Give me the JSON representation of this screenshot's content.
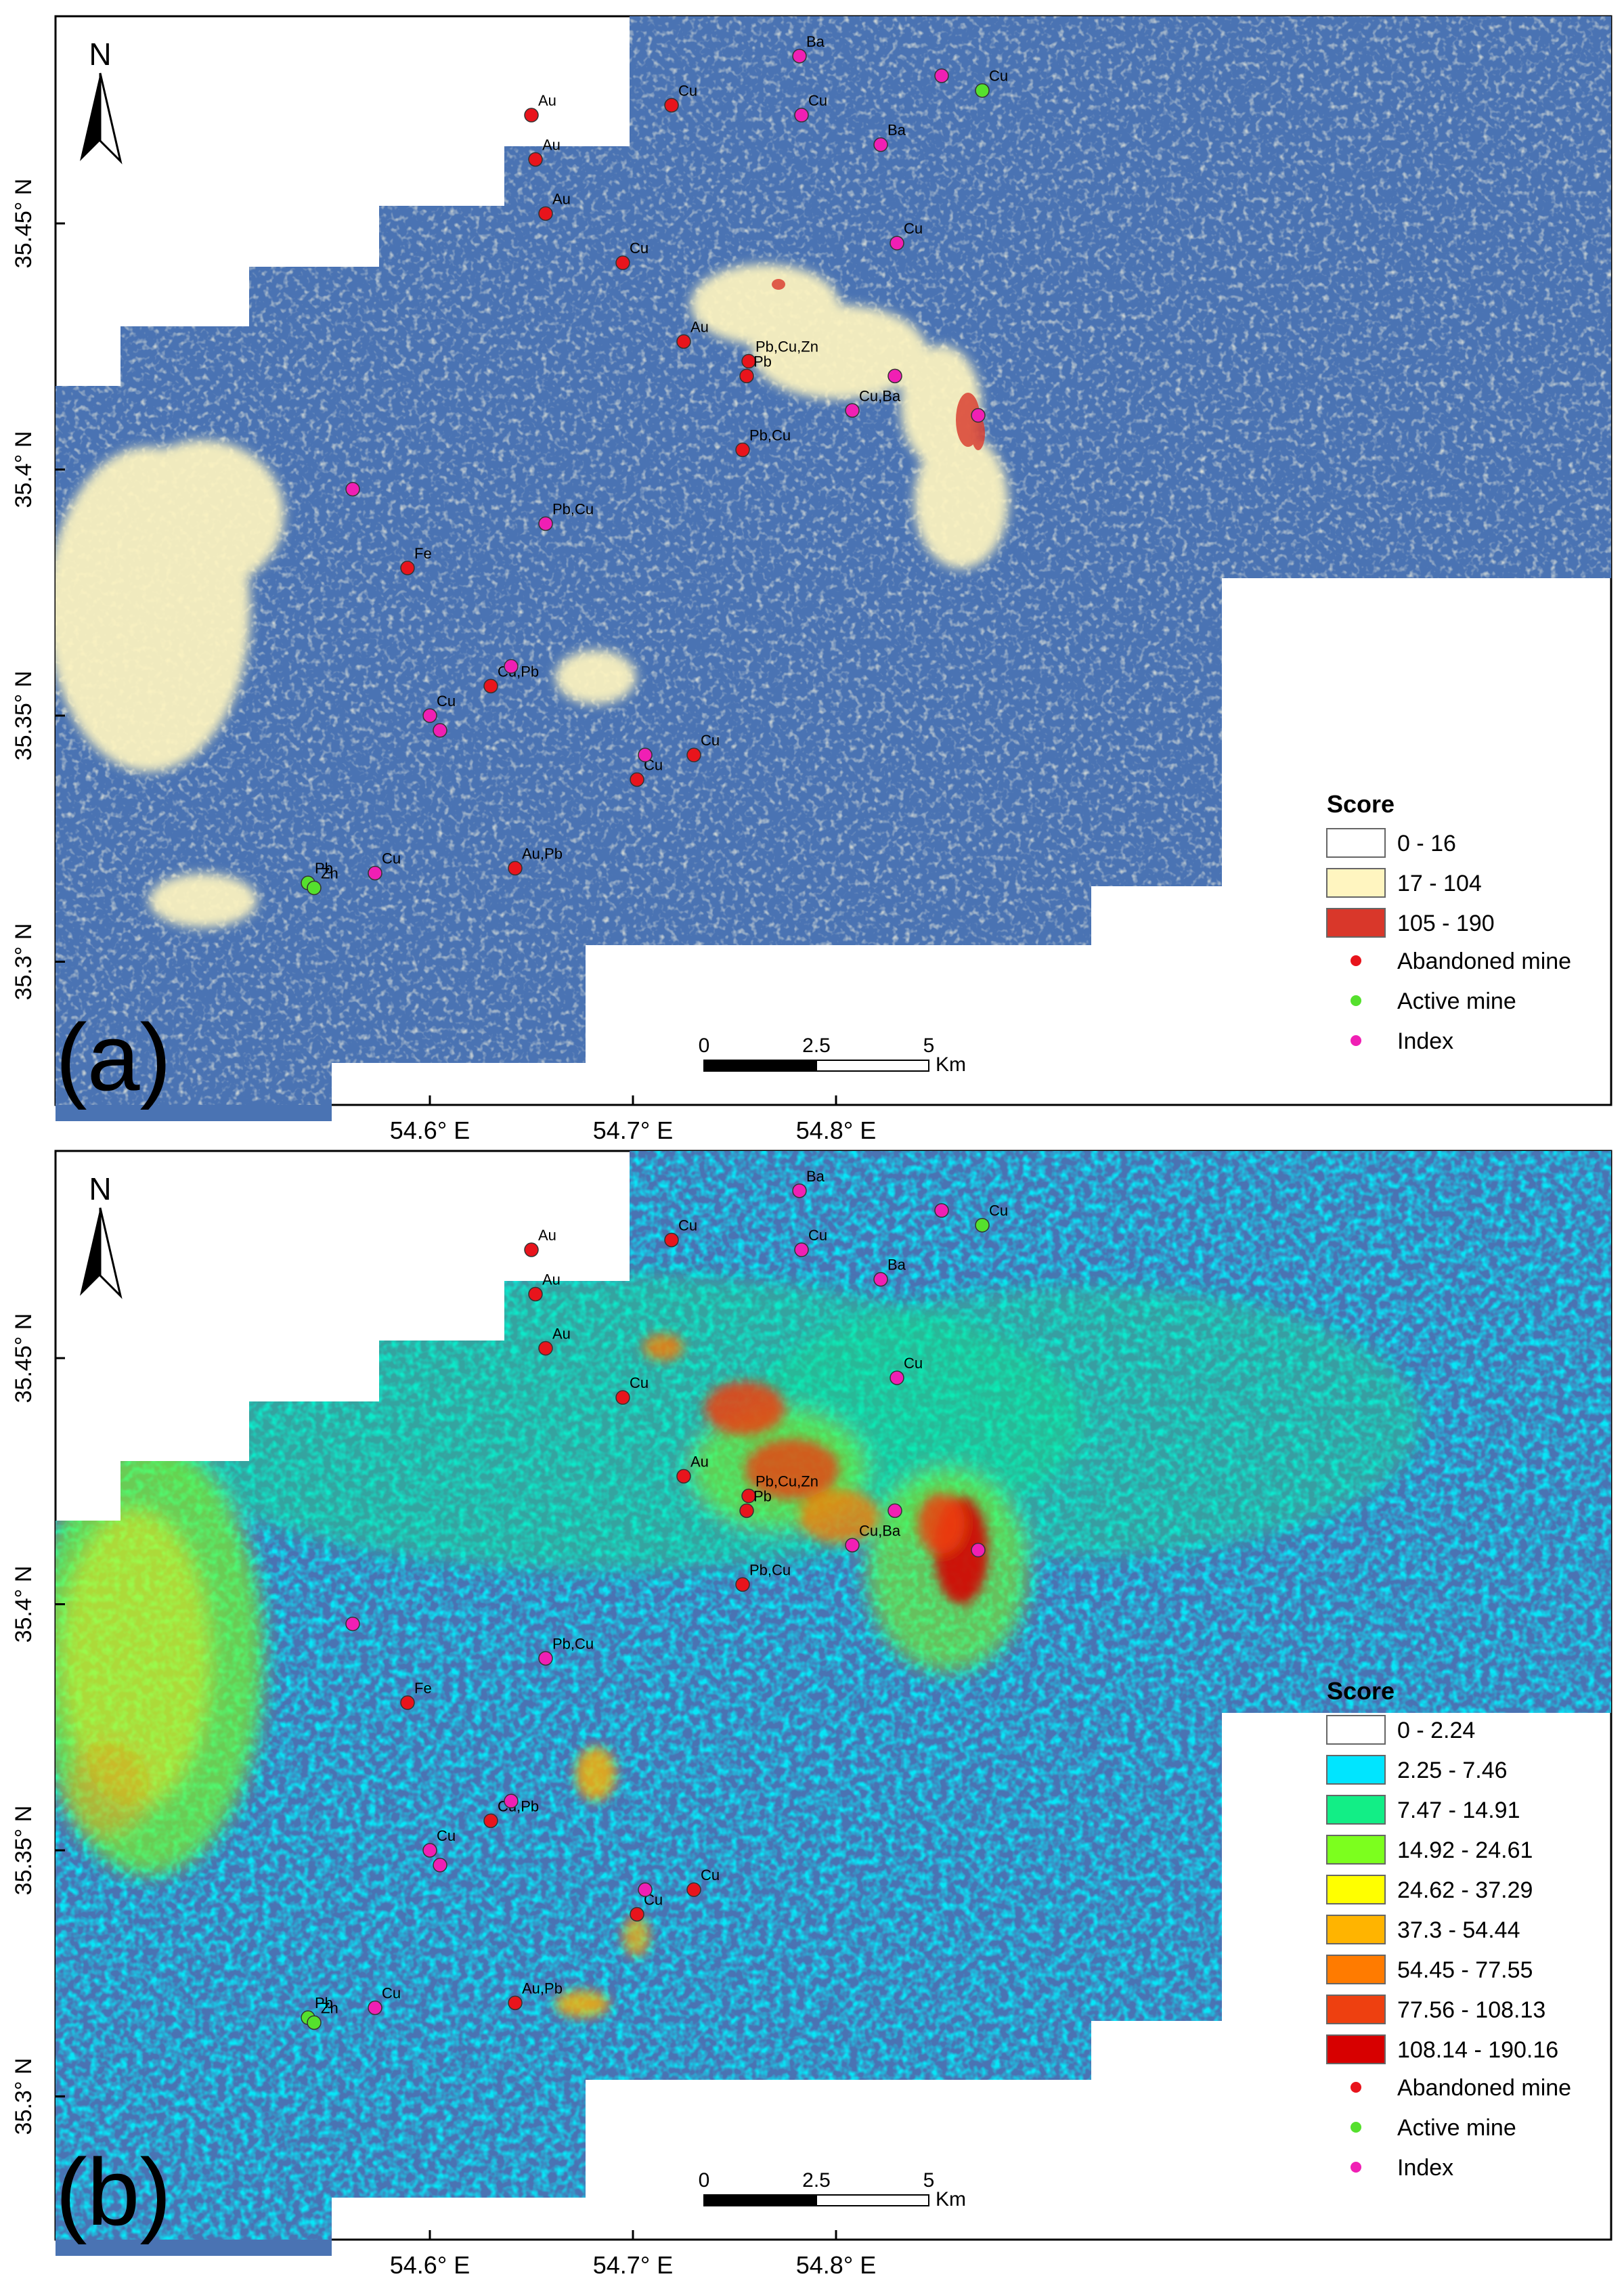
{
  "panels": [
    {
      "id": "a",
      "panel_label": "(a)",
      "north_label": "N",
      "lat_ticks": [
        "35.45° N",
        "35.4° N",
        "35.35° N",
        "35.3° N"
      ],
      "scale_bar": {
        "ticks": [
          "0",
          "2.5",
          "5"
        ],
        "unit": "Km"
      },
      "legend": {
        "title": "Score",
        "classes": [
          {
            "label": "0 - 16",
            "color": "#ffffff"
          },
          {
            "label": "17 - 104",
            "color": "#fff5c0"
          },
          {
            "label": "105 - 190",
            "color": "#d9372a"
          }
        ],
        "points": [
          {
            "label": "Abandoned mine",
            "color": "#e8141c"
          },
          {
            "label": "Active mine",
            "color": "#55e02d"
          },
          {
            "label": "Index",
            "color": "#f01fb4"
          }
        ]
      }
    },
    {
      "id": "b",
      "panel_label": "(b)",
      "north_label": "N",
      "lat_ticks": [
        "35.45° N",
        "35.4° N",
        "35.35° N",
        "35.3° N"
      ],
      "lon_ticks": [
        "54.6° E",
        "54.7° E",
        "54.8° E"
      ],
      "scale_bar": {
        "ticks": [
          "0",
          "2.5",
          "5"
        ],
        "unit": "Km"
      },
      "legend": {
        "title": "Score",
        "classes": [
          {
            "label": "0 - 2.24",
            "color": "#ffffff"
          },
          {
            "label": "2.25 - 7.46",
            "color": "#00e5ff"
          },
          {
            "label": "7.47 - 14.91",
            "color": "#12ee86"
          },
          {
            "label": "14.92 - 24.61",
            "color": "#7cff1e"
          },
          {
            "label": "24.62 - 37.29",
            "color": "#ffff00"
          },
          {
            "label": "37.3 - 54.44",
            "color": "#ffb400"
          },
          {
            "label": "54.45 - 77.55",
            "color": "#ff7b00"
          },
          {
            "label": "77.56 - 108.13",
            "color": "#ee4010"
          },
          {
            "label": "108.14 - 190.16",
            "color": "#d70000"
          }
        ],
        "points": [
          {
            "label": "Abandoned mine",
            "color": "#e8141c"
          },
          {
            "label": "Active mine",
            "color": "#55e02d"
          },
          {
            "label": "Index",
            "color": "#f01fb4"
          }
        ]
      }
    }
  ],
  "shared_lon_ticks": [
    "54.6° E",
    "54.7° E",
    "54.8° E"
  ],
  "map_colors": {
    "background": "#4a73b3",
    "frame": "#000000"
  },
  "sites": [
    {
      "label": "Ba",
      "type": "index",
      "lon": 54.782,
      "lat": 35.484
    },
    {
      "label": "Cu",
      "type": "abandoned",
      "lon": 54.719,
      "lat": 35.474
    },
    {
      "label": "Au",
      "type": "abandoned",
      "lon": 54.65,
      "lat": 35.472
    },
    {
      "label": "Au",
      "type": "abandoned",
      "lon": 54.652,
      "lat": 35.463
    },
    {
      "label": "Au",
      "type": "abandoned",
      "lon": 54.657,
      "lat": 35.452
    },
    {
      "label": "Cu",
      "type": "index",
      "lon": 54.783,
      "lat": 35.472
    },
    {
      "label": "Ba",
      "type": "index",
      "lon": 54.822,
      "lat": 35.466
    },
    {
      "label": "Cu",
      "type": "active",
      "lon": 54.872,
      "lat": 35.477
    },
    {
      "label": "",
      "type": "index",
      "lon": 54.852,
      "lat": 35.48
    },
    {
      "label": "Cu",
      "type": "index",
      "lon": 54.83,
      "lat": 35.446
    },
    {
      "label": "Cu",
      "type": "abandoned",
      "lon": 54.695,
      "lat": 35.442
    },
    {
      "label": "Au",
      "type": "abandoned",
      "lon": 54.725,
      "lat": 35.426
    },
    {
      "label": "Pb,Cu,Zn",
      "type": "abandoned",
      "lon": 54.757,
      "lat": 35.422
    },
    {
      "label": "Pb",
      "type": "abandoned",
      "lon": 54.756,
      "lat": 35.419
    },
    {
      "label": "",
      "type": "index",
      "lon": 54.829,
      "lat": 35.419
    },
    {
      "label": "Cu,Ba",
      "type": "index",
      "lon": 54.808,
      "lat": 35.412
    },
    {
      "label": "",
      "type": "index",
      "lon": 54.87,
      "lat": 35.411
    },
    {
      "label": "Pb,Cu",
      "type": "abandoned",
      "lon": 54.754,
      "lat": 35.404
    },
    {
      "label": "",
      "type": "index",
      "lon": 54.562,
      "lat": 35.396
    },
    {
      "label": "Pb,Cu",
      "type": "index",
      "lon": 54.657,
      "lat": 35.389
    },
    {
      "label": "Fe",
      "type": "abandoned",
      "lon": 54.589,
      "lat": 35.38
    },
    {
      "label": "Cu,Pb",
      "type": "abandoned",
      "lon": 54.63,
      "lat": 35.356
    },
    {
      "label": "",
      "type": "index",
      "lon": 54.64,
      "lat": 35.36
    },
    {
      "label": "Cu",
      "type": "index",
      "lon": 54.6,
      "lat": 35.35
    },
    {
      "label": "",
      "type": "index",
      "lon": 54.605,
      "lat": 35.347
    },
    {
      "label": "Cu",
      "type": "abandoned",
      "lon": 54.73,
      "lat": 35.342
    },
    {
      "label": "Cu",
      "type": "abandoned",
      "lon": 54.702,
      "lat": 35.337
    },
    {
      "label": "",
      "type": "index",
      "lon": 54.706,
      "lat": 35.342
    },
    {
      "label": "Au,Pb",
      "type": "abandoned",
      "lon": 54.642,
      "lat": 35.319
    },
    {
      "label": "Cu",
      "type": "index",
      "lon": 54.573,
      "lat": 35.318
    },
    {
      "label": "Pb",
      "type": "active",
      "lon": 54.54,
      "lat": 35.316
    },
    {
      "label": "Zn",
      "type": "active",
      "lon": 54.543,
      "lat": 35.315
    }
  ]
}
